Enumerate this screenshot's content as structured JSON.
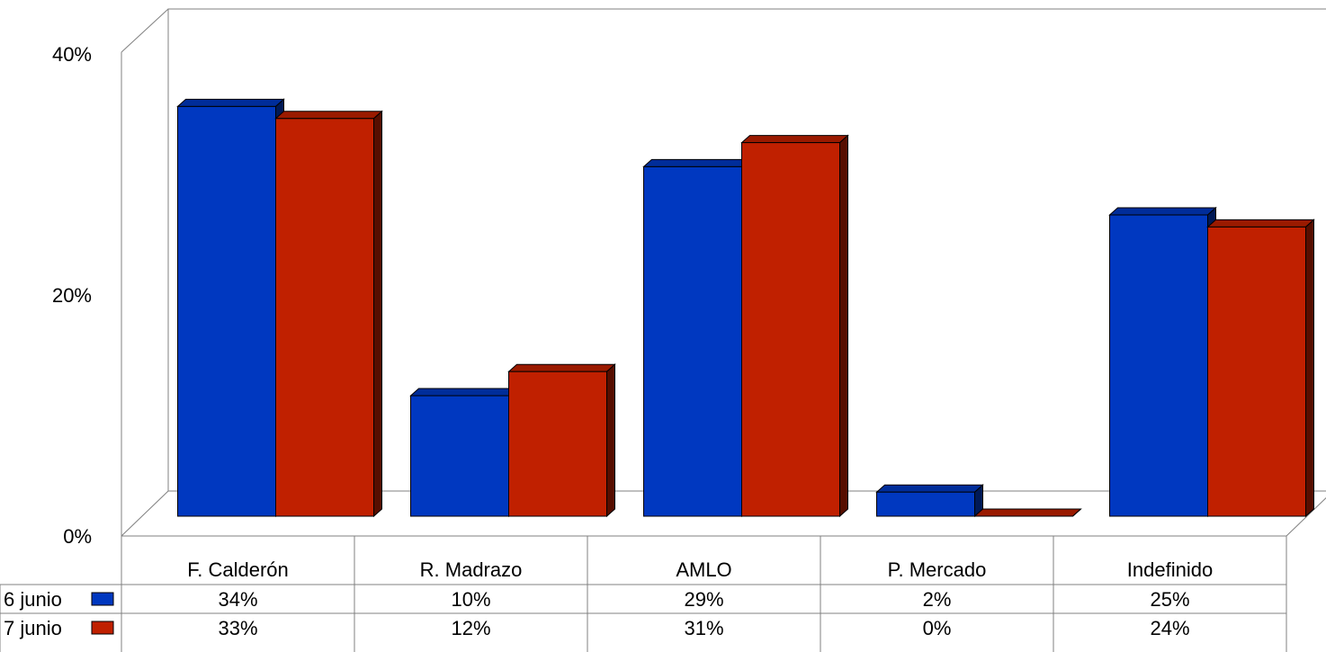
{
  "chart_data": {
    "type": "bar",
    "categories": [
      "F. Calderón",
      "R. Madrazo",
      "AMLO",
      "P. Mercado",
      "Indefinido"
    ],
    "series": [
      {
        "name": "6 junio",
        "color": "#0038C0",
        "values": [
          34,
          10,
          29,
          2,
          25
        ],
        "labels": [
          "34%",
          "10%",
          "29%",
          "2%",
          "25%"
        ]
      },
      {
        "name": "7 junio",
        "color": "#C02000",
        "values": [
          33,
          12,
          31,
          0,
          24
        ],
        "labels": [
          "33%",
          "12%",
          "31%",
          "0%",
          "24%"
        ]
      }
    ],
    "yticks": [
      "0%",
      "20%",
      "40%"
    ],
    "ytick_values": [
      0,
      20,
      40
    ],
    "ylim": [
      0,
      40
    ],
    "title": "",
    "xlabel": "",
    "ylabel": "",
    "legend": "data-table",
    "style": "3d-clustered-bar"
  }
}
